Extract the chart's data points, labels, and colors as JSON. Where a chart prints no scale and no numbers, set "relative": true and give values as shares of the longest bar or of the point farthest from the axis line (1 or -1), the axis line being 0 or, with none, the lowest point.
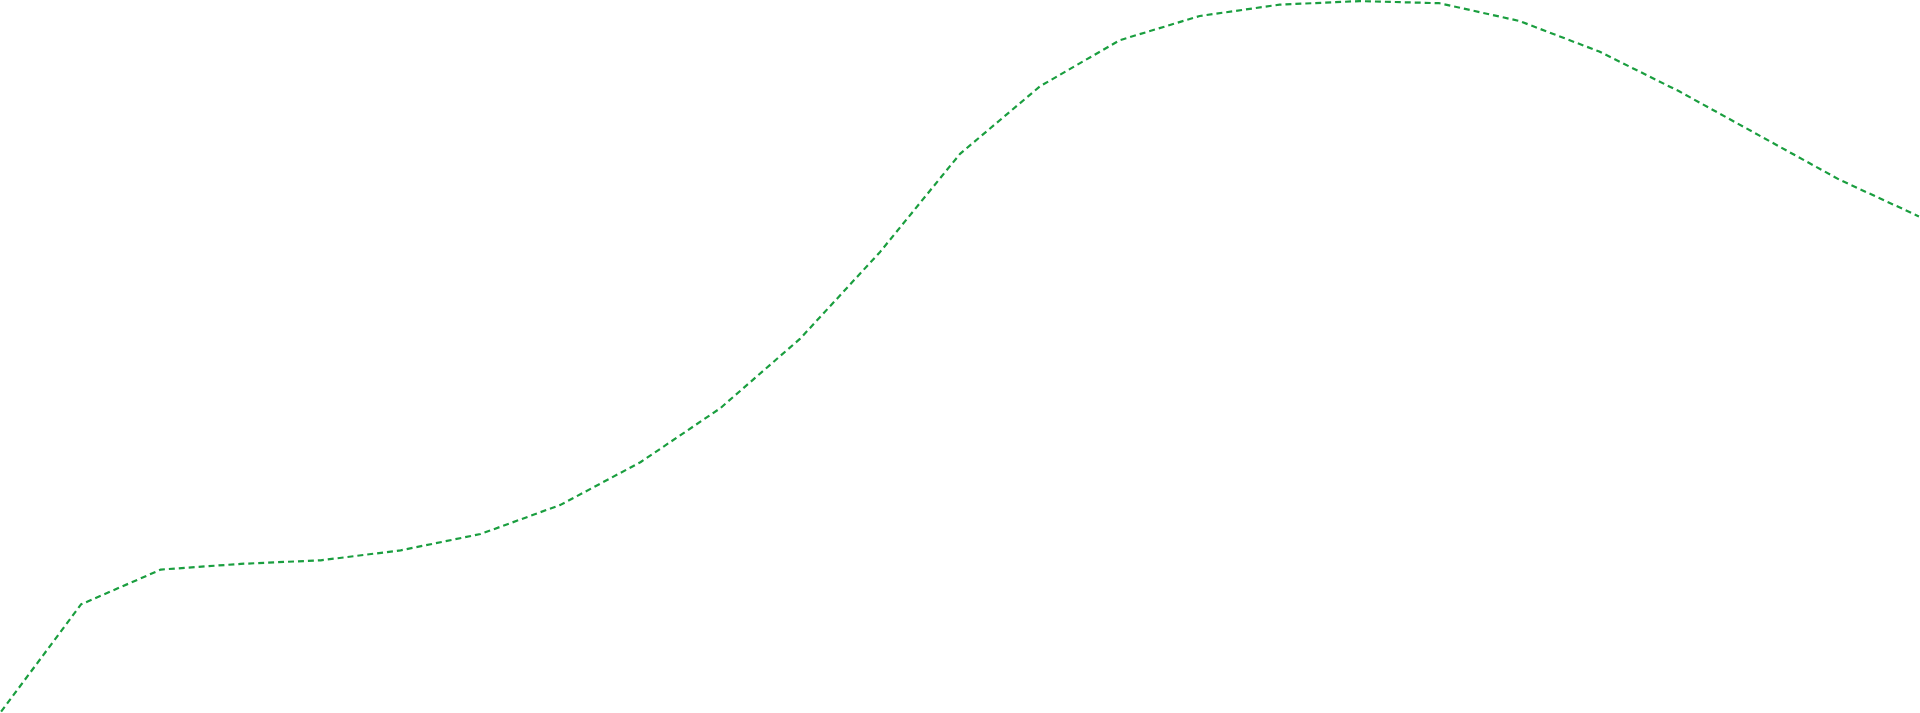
{
  "chart_data": {
    "type": "line",
    "relative": true,
    "line_style": "dashed",
    "categories": [
      null,
      null,
      null,
      null,
      null,
      null,
      null,
      null,
      null,
      null,
      null,
      null,
      null,
      null,
      null,
      null,
      null,
      null,
      null,
      null,
      null,
      null,
      null,
      null,
      null
    ],
    "series": [
      {
        "color": "#1a9e3f",
        "values": [
          0,
          0.151,
          0.2,
          0.208,
          0.213,
          0.227,
          0.25,
          0.291,
          0.351,
          0.427,
          0.525,
          0.647,
          0.785,
          0.88,
          0.945,
          0.979,
          0.995,
          1.0,
          0.997,
          0.972,
          0.929,
          0.873,
          0.811,
          0.749,
          0.697
        ]
      }
    ]
  }
}
